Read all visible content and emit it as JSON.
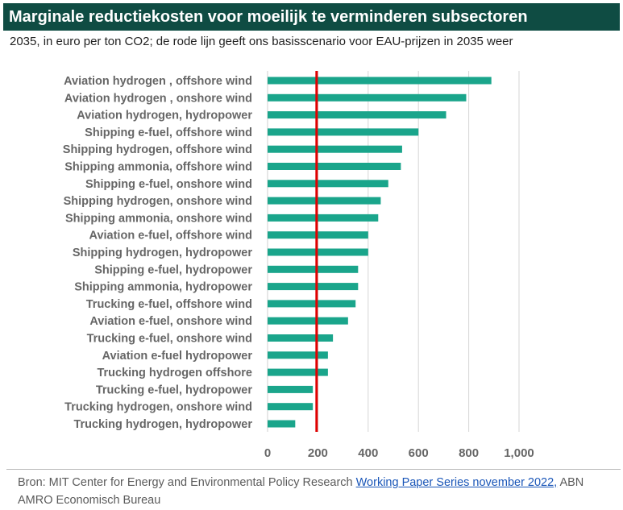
{
  "header": {
    "title": "Marginale reductiekosten voor moeilijk te verminderen subsectoren",
    "subtitle": "2035, in euro per ton CO2; de rode lijn geeft ons basisscenario voor EAU-prijzen in 2035 weer"
  },
  "source": {
    "prefix": "Bron: MIT Center for Energy and Environmental Policy Research ",
    "link_text": "Working Paper Series november 2022,",
    "suffix": " ABN AMRO Economisch Bureau"
  },
  "colors": {
    "title_background": "#0f4c43",
    "bar": "#1aa58b",
    "reference_line": "#e00000",
    "grid": "#d6d6d6"
  },
  "chart_data": {
    "type": "bar",
    "orientation": "horizontal",
    "categories": [
      "Aviation hydrogen , offshore wind",
      "Aviation hydrogen , onshore wind",
      "Aviation hydrogen, hydropower",
      "Shipping e-fuel, offshore wind",
      "Shipping hydrogen, offshore wind",
      "Shipping ammonia, offshore wind",
      "Shipping e-fuel, onshore wind",
      "Shipping hydrogen, onshore wind",
      "Shipping ammonia, onshore wind",
      "Aviation e-fuel, offshore wind",
      "Shipping hydrogen, hydropower",
      "Shipping e-fuel, hydropower",
      "Shipping ammonia, hydropower",
      "Trucking e-fuel, offshore wind",
      "Aviation e-fuel, onshore wind",
      "Trucking e-fuel, onshore wind",
      "Aviation e-fuel hydropower",
      "Trucking hydrogen offshore",
      "Trucking e-fuel, hydropower",
      "Trucking hydrogen, onshore wind",
      "Trucking hydrogen, hydropower"
    ],
    "values": [
      890,
      790,
      710,
      600,
      535,
      530,
      480,
      450,
      440,
      400,
      400,
      360,
      360,
      350,
      320,
      260,
      240,
      240,
      180,
      180,
      110
    ],
    "reference_value": 195,
    "xlim": [
      0,
      1000
    ],
    "xticks": [
      0,
      200,
      400,
      600,
      800,
      1000
    ],
    "xtick_labels": [
      "0",
      "200",
      "400",
      "600",
      "800",
      "1,000"
    ],
    "grid": "vertical"
  }
}
